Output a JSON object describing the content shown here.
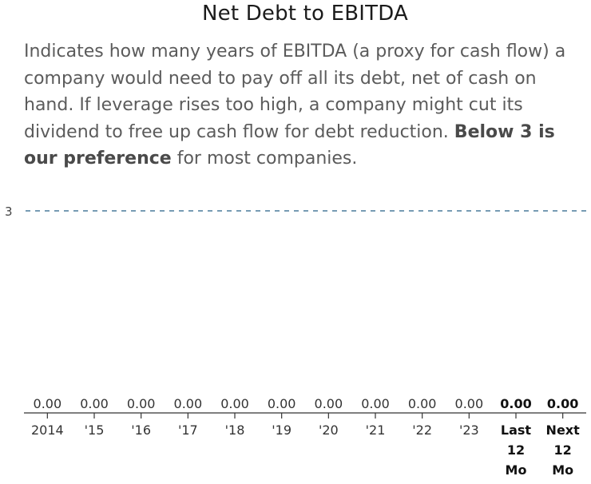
{
  "header": {
    "title": "Net Debt to EBITDA",
    "description_part1": "Indicates how many years of EBITDA (a proxy for cash flow) a company would need to pay off all its debt, net of cash on hand. If leverage rises too high, a company might cut its dividend to free up cash flow for debt reduction. ",
    "description_bold": "Below 3 is our preference",
    "description_part2": " for most companies."
  },
  "colors": {
    "reference_line": "#4a7a9c",
    "axis": "#333333"
  },
  "chart_data": {
    "type": "bar",
    "title": "Net Debt to EBITDA",
    "xlabel": "",
    "ylabel": "",
    "ylim": [
      0,
      3.3
    ],
    "grid": false,
    "categories": [
      [
        "2014"
      ],
      [
        "'15"
      ],
      [
        "'16"
      ],
      [
        "'17"
      ],
      [
        "'18"
      ],
      [
        "'19"
      ],
      [
        "'20"
      ],
      [
        "'21"
      ],
      [
        "'22"
      ],
      [
        "'23"
      ],
      [
        "Last",
        "12",
        "Mo"
      ],
      [
        "Next",
        "12",
        "Mo"
      ]
    ],
    "values": [
      0,
      0,
      0,
      0,
      0,
      0,
      0,
      0,
      0,
      0,
      0,
      0
    ],
    "value_labels": [
      "0.00",
      "0.00",
      "0.00",
      "0.00",
      "0.00",
      "0.00",
      "0.00",
      "0.00",
      "0.00",
      "0.00",
      "0.00",
      "0.00"
    ],
    "bold_categories": [
      10,
      11
    ],
    "reference_line": {
      "value": 3,
      "label": "3",
      "style": "dashed"
    }
  }
}
